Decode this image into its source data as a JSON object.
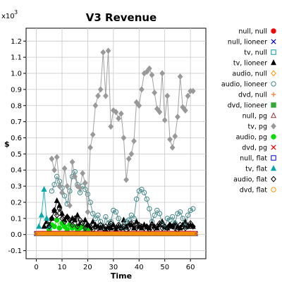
{
  "chart_data": {
    "type": "line",
    "title": "V3 Revenue",
    "xlabel": "Time",
    "ylabel": "$",
    "y_multiplier_label": "x10",
    "y_multiplier_exp": "3",
    "xlim": [
      -4,
      66
    ],
    "ylim": [
      -0.15,
      1.28
    ],
    "x_ticks": [
      0,
      10,
      20,
      30,
      40,
      50,
      60
    ],
    "y_ticks": [
      -0.1,
      0.0,
      0.1,
      0.2,
      0.3,
      0.4,
      0.5,
      0.6,
      0.7,
      0.8,
      0.9,
      1.0,
      1.1,
      1.2
    ],
    "grid": true,
    "legend_position": "right",
    "series": [
      {
        "name": "null, null",
        "color": "#ff0000",
        "marker": "circle-filled",
        "x": [
          0,
          62
        ],
        "y": [
          0.005,
          0.005
        ],
        "dense": true
      },
      {
        "name": "null, lioneer",
        "color": "#0000cc",
        "marker": "x",
        "x": [
          0,
          62
        ],
        "y": [
          0.005,
          0.005
        ],
        "dense": true
      },
      {
        "name": "tv, null",
        "color": "#009999",
        "marker": "square-open",
        "x": [
          0,
          62
        ],
        "y": [
          0.005,
          0.005
        ],
        "dense": true
      },
      {
        "name": "tv, lioneer",
        "color": "#000000",
        "marker": "triangle-filled",
        "x": [
          3,
          4,
          5,
          6,
          7,
          8,
          9,
          10,
          11,
          12,
          13,
          14,
          15,
          16,
          17,
          18,
          19,
          20,
          21,
          22,
          23,
          24,
          25,
          26,
          27,
          28,
          29,
          30,
          31,
          32,
          33,
          34,
          35,
          36,
          37,
          38,
          39,
          40,
          41,
          42,
          43,
          44,
          45,
          46,
          47,
          48,
          49,
          50,
          51,
          52,
          53,
          54,
          55,
          56,
          57,
          58,
          59,
          60,
          61
        ],
        "y": [
          0.05,
          0.08,
          0.06,
          0.1,
          0.15,
          0.21,
          0.18,
          0.13,
          0.09,
          0.11,
          0.07,
          0.1,
          0.09,
          0.12,
          0.06,
          0.05,
          0.09,
          0.06,
          0.04,
          0.08,
          0.06,
          0.05,
          0.04,
          0.05,
          0.03,
          0.05,
          0.04,
          0.06,
          0.03,
          0.05,
          0.04,
          0.09,
          0.05,
          0.07,
          0.06,
          0.04,
          0.08,
          0.05,
          0.04,
          0.06,
          0.05,
          0.04,
          0.07,
          0.05,
          0.04,
          0.06,
          0.08,
          0.05,
          0.04,
          0.06,
          0.05,
          0.07,
          0.05,
          0.04,
          0.06,
          0.08,
          0.05,
          0.06,
          0.05
        ]
      },
      {
        "name": "audio, null",
        "color": "#ff9900",
        "marker": "diamond-open",
        "x": [
          0,
          62
        ],
        "y": [
          0.005,
          0.005
        ],
        "dense": true
      },
      {
        "name": "audio, lioneer",
        "color": "#448888",
        "marker": "circle-open",
        "x": [
          6,
          7,
          8,
          9,
          10,
          11,
          12,
          13,
          14,
          15,
          16,
          17,
          18,
          19,
          20,
          21,
          22,
          23,
          24,
          25,
          26,
          27,
          28,
          29,
          30,
          31,
          32,
          33,
          34,
          35,
          36,
          37,
          38,
          39,
          40,
          41,
          42,
          43,
          44,
          45,
          46,
          47,
          48,
          49,
          50,
          51,
          52,
          53,
          54,
          55,
          56,
          57,
          58,
          59,
          60,
          61
        ],
        "y": [
          0.27,
          0.31,
          0.36,
          0.33,
          0.29,
          0.24,
          0.19,
          0.27,
          0.36,
          0.39,
          0.31,
          0.26,
          0.3,
          0.28,
          0.25,
          0.2,
          0.13,
          0.1,
          0.12,
          0.08,
          0.04,
          0.11,
          0.07,
          0.08,
          0.15,
          0.14,
          0.1,
          0.05,
          0.04,
          0.08,
          0.09,
          0.12,
          0.1,
          0.22,
          0.27,
          0.28,
          0.26,
          0.22,
          0.16,
          0.08,
          0.12,
          0.15,
          0.13,
          0.06,
          0.04,
          0.1,
          0.09,
          0.11,
          0.07,
          0.13,
          0.14,
          0.1,
          0.05,
          0.12,
          0.15,
          0.16
        ]
      },
      {
        "name": "dvd, null",
        "color": "#ff7733",
        "marker": "plus",
        "x": [
          0,
          62
        ],
        "y": [
          0.005,
          0.005
        ],
        "dense": true
      },
      {
        "name": "dvd, lioneer",
        "color": "#33aa33",
        "marker": "square-filled",
        "x": [
          0,
          62
        ],
        "y": [
          0.005,
          0.005
        ],
        "dense": true
      },
      {
        "name": "null, pg",
        "color": "#993333",
        "marker": "triangle-open",
        "x": [
          0,
          62
        ],
        "y": [
          0.005,
          0.005
        ],
        "dense": true
      },
      {
        "name": "tv, pg",
        "color": "#999999",
        "marker": "diamond-filled",
        "x": [
          6,
          7,
          8,
          9,
          10,
          11,
          12,
          13,
          14,
          15,
          16,
          17,
          18,
          19,
          20,
          21,
          22,
          23,
          24,
          25,
          26,
          27,
          28,
          29,
          30,
          31,
          32,
          33,
          34,
          35,
          36,
          37,
          38,
          39,
          40,
          41,
          42,
          43,
          44,
          45,
          46,
          47,
          48,
          49,
          50,
          51,
          52,
          53,
          54,
          55,
          56,
          57,
          58,
          59,
          60,
          61
        ],
        "y": [
          0.47,
          0.4,
          0.48,
          0.3,
          0.26,
          0.41,
          0.3,
          0.18,
          0.45,
          0.36,
          0.3,
          0.29,
          0.38,
          0.32,
          0.14,
          0.54,
          0.62,
          0.8,
          0.86,
          0.9,
          1.13,
          0.86,
          1.14,
          0.67,
          0.77,
          0.76,
          0.72,
          0.75,
          0.6,
          0.34,
          0.47,
          0.5,
          0.58,
          0.82,
          0.8,
          0.9,
          1.0,
          1.01,
          1.03,
          0.99,
          0.88,
          0.78,
          0.76,
          1.0,
          0.71,
          0.86,
          0.59,
          0.54,
          0.61,
          0.73,
          0.98,
          0.79,
          0.77,
          0.86,
          0.89,
          0.89
        ]
      },
      {
        "name": "audio, pg",
        "color": "#00dd00",
        "marker": "circle-filled",
        "x": [
          5,
          6,
          7,
          8,
          9,
          10,
          11,
          12,
          13,
          14,
          15,
          16,
          17,
          18,
          19,
          20
        ],
        "y": [
          0.03,
          0.06,
          0.05,
          0.09,
          0.04,
          0.07,
          0.05,
          0.03,
          0.06,
          0.04,
          0.05,
          0.03,
          0.04,
          0.05,
          0.02,
          0.03
        ]
      },
      {
        "name": "dvd, pg",
        "color": "#ff0000",
        "marker": "x",
        "x": [
          0,
          62
        ],
        "y": [
          0.01,
          0.01
        ],
        "dense": true
      },
      {
        "name": "null, flat",
        "color": "#0000cc",
        "marker": "square-open",
        "x": [
          0,
          62
        ],
        "y": [
          0.005,
          0.005
        ],
        "dense": true
      },
      {
        "name": "tv, flat",
        "color": "#00aaaa",
        "marker": "triangle-filled",
        "x": [
          1,
          2,
          3,
          4,
          5
        ],
        "y": [
          0.05,
          0.12,
          0.28,
          0.1,
          0.05
        ]
      },
      {
        "name": "audio, flat",
        "color": "#000000",
        "marker": "diamond-open",
        "x": [
          4,
          5,
          6,
          7,
          8,
          9,
          10,
          11,
          12,
          13,
          14,
          15,
          16,
          17,
          18,
          19,
          20,
          21,
          22,
          23,
          24,
          25,
          26,
          27,
          28,
          29,
          30,
          31,
          32,
          33,
          34,
          35,
          36,
          37,
          38,
          39,
          40,
          41,
          42,
          43,
          44,
          45,
          46,
          47,
          48,
          49,
          50,
          51,
          52,
          53,
          54,
          55,
          56,
          57,
          58,
          59,
          60,
          61
        ],
        "y": [
          0.06,
          0.05,
          0.1,
          0.15,
          0.12,
          0.16,
          0.1,
          0.08,
          0.11,
          0.09,
          0.06,
          0.1,
          0.05,
          0.09,
          0.07,
          0.04,
          0.06,
          0.05,
          0.03,
          0.05,
          0.04,
          0.06,
          0.04,
          0.05,
          0.03,
          0.07,
          0.05,
          0.04,
          0.06,
          0.04,
          0.05,
          0.03,
          0.04,
          0.07,
          0.05,
          0.04,
          0.06,
          0.05,
          0.04,
          0.05,
          0.03,
          0.06,
          0.04,
          0.05,
          0.07,
          0.04,
          0.05,
          0.04,
          0.06,
          0.05,
          0.04,
          0.03,
          0.06,
          0.05,
          0.04,
          0.05,
          0.07,
          0.05
        ]
      },
      {
        "name": "dvd, flat",
        "color": "#ff9900",
        "marker": "circle-open",
        "x": [
          0,
          62
        ],
        "y": [
          0.005,
          0.005
        ],
        "dense": true
      }
    ]
  }
}
